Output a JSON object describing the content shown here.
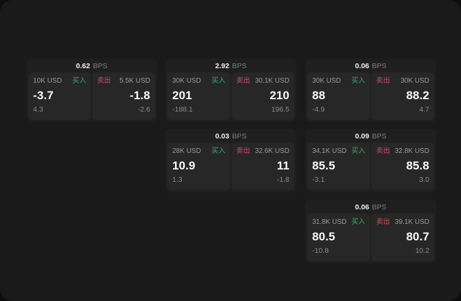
{
  "labels": {
    "bps_unit": "BPS",
    "buy": "买入",
    "sell": "卖出"
  },
  "colors": {
    "page_bg": "#1a1a1a",
    "card_bg": "#1f1f1f",
    "panel_bg": "#272727",
    "buy_green": "#35a873",
    "sell_red": "#cf4f6a"
  },
  "cards": [
    {
      "bps": "0.62",
      "buy": {
        "amount": "10K USD",
        "value": "-3.7",
        "delta": "4.3"
      },
      "sell": {
        "amount": "5.5K USD",
        "value": "-1.8",
        "delta": "-2.6"
      }
    },
    {
      "bps": "2.92",
      "buy": {
        "amount": "30K USD",
        "value": "201",
        "delta": "-188.1"
      },
      "sell": {
        "amount": "30.1K USD",
        "value": "210",
        "delta": "196.5"
      }
    },
    {
      "bps": "0.06",
      "buy": {
        "amount": "30K USD",
        "value": "88",
        "delta": "-4.9"
      },
      "sell": {
        "amount": "30K USD",
        "value": "88.2",
        "delta": "4.7"
      }
    },
    {
      "bps": "0.03",
      "buy": {
        "amount": "28K USD",
        "value": "10.9",
        "delta": "1.3"
      },
      "sell": {
        "amount": "32.6K USD",
        "value": "11",
        "delta": "-1.8"
      }
    },
    {
      "bps": "0.09",
      "buy": {
        "amount": "34.1K USD",
        "value": "85.5",
        "delta": "-3.1"
      },
      "sell": {
        "amount": "32.8K USD",
        "value": "85.8",
        "delta": "3.0"
      }
    },
    {
      "bps": "0.06",
      "buy": {
        "amount": "31.8K USD",
        "value": "80.5",
        "delta": "-10.8"
      },
      "sell": {
        "amount": "39.1K USD",
        "value": "80.7",
        "delta": "10.2"
      }
    }
  ]
}
